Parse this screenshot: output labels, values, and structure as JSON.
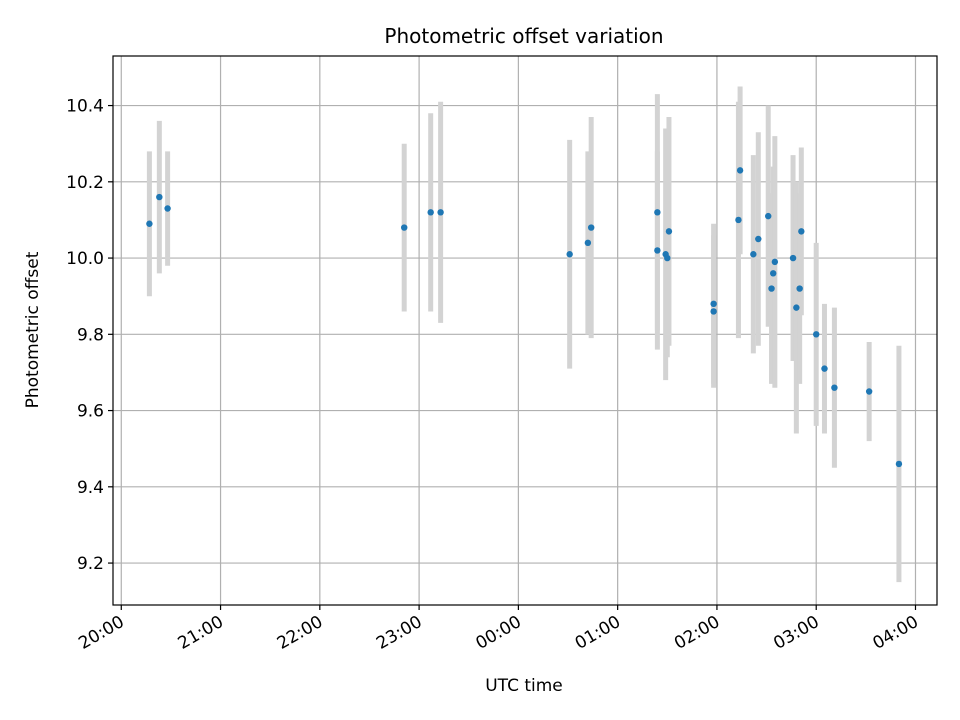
{
  "chart_data": {
    "type": "scatter",
    "title": "Photometric offset variation",
    "xlabel": "UTC time",
    "ylabel": "Photometric offset",
    "x_unit": "time (HH:MM, UTC)",
    "xlim": [
      "19:55",
      "04:13"
    ],
    "ylim": [
      9.09,
      10.53
    ],
    "grid": true,
    "x_ticks": [
      "20:00",
      "21:00",
      "22:00",
      "23:00",
      "00:00",
      "01:00",
      "02:00",
      "03:00",
      "04:00"
    ],
    "y_ticks": [
      "9.2",
      "9.4",
      "9.6",
      "9.8",
      "10.0",
      "10.2",
      "10.4"
    ],
    "point_color": "#1f77b4",
    "errorbar_color": "#d3d3d3",
    "points": [
      {
        "x": "20:17",
        "y": 10.09,
        "err": 0.19
      },
      {
        "x": "20:23",
        "y": 10.16,
        "err": 0.2
      },
      {
        "x": "20:28",
        "y": 10.13,
        "err": 0.15
      },
      {
        "x": "22:51",
        "y": 10.08,
        "err": 0.22
      },
      {
        "x": "23:07",
        "y": 10.12,
        "err": 0.26
      },
      {
        "x": "23:13",
        "y": 10.12,
        "err": 0.29
      },
      {
        "x": "00:31",
        "y": 10.01,
        "err": 0.3
      },
      {
        "x": "00:42",
        "y": 10.04,
        "err": 0.24
      },
      {
        "x": "00:44",
        "y": 10.08,
        "err": 0.29
      },
      {
        "x": "01:24",
        "y": 10.02,
        "err": 0.26
      },
      {
        "x": "01:24",
        "y": 10.12,
        "err": 0.31
      },
      {
        "x": "01:29",
        "y": 10.01,
        "err": 0.33
      },
      {
        "x": "01:30",
        "y": 10.0,
        "err": 0.26
      },
      {
        "x": "01:31",
        "y": 10.07,
        "err": 0.3
      },
      {
        "x": "01:58",
        "y": 9.88,
        "err": 0.21
      },
      {
        "x": "01:58",
        "y": 9.86,
        "err": 0.2
      },
      {
        "x": "02:13",
        "y": 10.1,
        "err": 0.31
      },
      {
        "x": "02:14",
        "y": 10.23,
        "err": 0.22
      },
      {
        "x": "02:22",
        "y": 10.01,
        "err": 0.26
      },
      {
        "x": "02:25",
        "y": 10.05,
        "err": 0.28
      },
      {
        "x": "02:31",
        "y": 10.11,
        "err": 0.29
      },
      {
        "x": "02:33",
        "y": 9.92,
        "err": 0.25
      },
      {
        "x": "02:34",
        "y": 9.96,
        "err": 0.28
      },
      {
        "x": "02:35",
        "y": 9.99,
        "err": 0.33
      },
      {
        "x": "02:46",
        "y": 10.0,
        "err": 0.27
      },
      {
        "x": "02:48",
        "y": 9.87,
        "err": 0.33
      },
      {
        "x": "02:50",
        "y": 9.92,
        "err": 0.25
      },
      {
        "x": "02:51",
        "y": 10.07,
        "err": 0.22
      },
      {
        "x": "03:00",
        "y": 9.8,
        "err": 0.24
      },
      {
        "x": "03:05",
        "y": 9.71,
        "err": 0.17
      },
      {
        "x": "03:11",
        "y": 9.66,
        "err": 0.21
      },
      {
        "x": "03:32",
        "y": 9.65,
        "err": 0.13
      },
      {
        "x": "03:50",
        "y": 9.46,
        "err": 0.31
      }
    ]
  }
}
